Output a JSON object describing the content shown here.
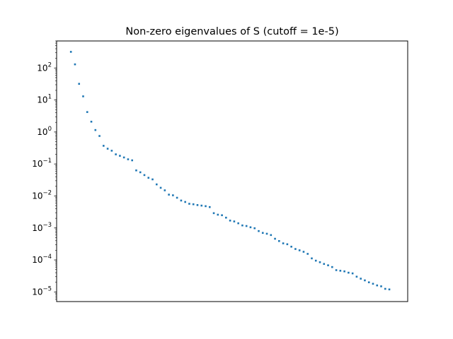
{
  "chart_data": {
    "type": "scatter",
    "title": "Non-zero eigenvalues of S (cutoff = 1e-5)",
    "xlabel": "",
    "ylabel": "",
    "yscale": "log",
    "ylim": [
      5e-06,
      700
    ],
    "xlim": [
      -3.5,
      82.5
    ],
    "x_ticks_visible": false,
    "grid": false,
    "legend": "none",
    "marker_color": "#1f77b4",
    "y_ticks": [
      {
        "value": 1e-05,
        "base": "10",
        "exp": "−5"
      },
      {
        "value": 0.0001,
        "base": "10",
        "exp": "−4"
      },
      {
        "value": 0.001,
        "base": "10",
        "exp": "−3"
      },
      {
        "value": 0.01,
        "base": "10",
        "exp": "−2"
      },
      {
        "value": 0.1,
        "base": "10",
        "exp": "−1"
      },
      {
        "value": 1,
        "base": "10",
        "exp": "0"
      },
      {
        "value": 10,
        "base": "10",
        "exp": "1"
      },
      {
        "value": 100,
        "base": "10",
        "exp": "2"
      }
    ],
    "series": [
      {
        "values": [
          320,
          130,
          32,
          13,
          4.2,
          2.1,
          1.15,
          0.75,
          0.37,
          0.3,
          0.26,
          0.2,
          0.18,
          0.16,
          0.14,
          0.13,
          0.063,
          0.055,
          0.045,
          0.037,
          0.033,
          0.023,
          0.018,
          0.015,
          0.011,
          0.0105,
          0.0088,
          0.0072,
          0.0065,
          0.0057,
          0.0055,
          0.0052,
          0.005,
          0.0048,
          0.0045,
          0.0029,
          0.0026,
          0.0025,
          0.0021,
          0.0017,
          0.0016,
          0.0014,
          0.0012,
          0.00115,
          0.00105,
          0.00098,
          0.0008,
          0.0007,
          0.00066,
          0.0006,
          0.00046,
          0.00039,
          0.00033,
          0.00031,
          0.00026,
          0.00022,
          0.0002,
          0.00018,
          0.000155,
          0.000112,
          9.5e-05,
          8.5e-05,
          7.5e-05,
          6.8e-05,
          6e-05,
          4.8e-05,
          4.6e-05,
          4.4e-05,
          4e-05,
          3.8e-05,
          3e-05,
          2.6e-05,
          2.3e-05,
          2e-05,
          1.8e-05,
          1.6e-05,
          1.5e-05,
          1.25e-05,
          1.2e-05
        ]
      }
    ]
  }
}
